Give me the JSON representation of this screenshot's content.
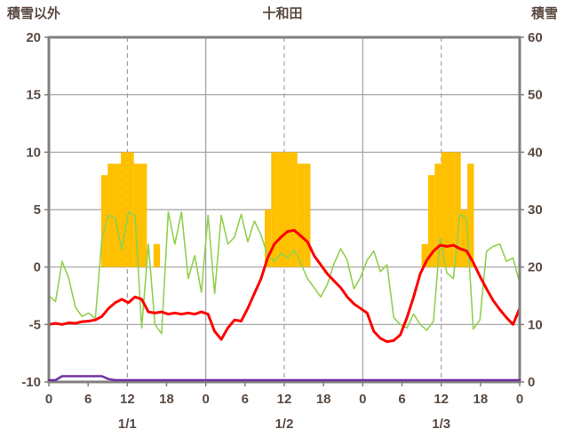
{
  "header": {
    "left_axis_title": "積雪以外",
    "title": "十和田",
    "right_axis_title": "積雪"
  },
  "colors": {
    "bar": "#FFC000",
    "green_line": "#92D050",
    "red_line": "#FF0000",
    "purple_line": "#7030A0",
    "axis_text": "#5a4a42",
    "grid": "#a0a0a0",
    "border": "#808080"
  },
  "chart_data": {
    "type": "bar",
    "title": "十和田",
    "x_unit": "hour",
    "x_range": [
      0,
      72
    ],
    "x_ticks": [
      0,
      6,
      12,
      18,
      24,
      30,
      36,
      42,
      48,
      54,
      60,
      66,
      72
    ],
    "x_tick_labels": [
      "0",
      "6",
      "12",
      "18",
      "0",
      "6",
      "12",
      "18",
      "0",
      "6",
      "12",
      "18",
      "0"
    ],
    "day_labels": [
      {
        "label": "1/1",
        "hour": 12
      },
      {
        "label": "1/2",
        "hour": 36
      },
      {
        "label": "1/3",
        "hour": 60
      }
    ],
    "left_axis": {
      "title": "積雪以外",
      "min": -10,
      "max": 20,
      "ticks": [
        20,
        15,
        10,
        5,
        0,
        -5,
        -10
      ]
    },
    "right_axis": {
      "title": "積雪",
      "min": 0,
      "max": 60,
      "ticks": [
        60,
        50,
        40,
        30,
        20,
        10,
        0
      ]
    },
    "grid": {
      "solid_vertical_hours": [
        24,
        48
      ],
      "dashed_vertical_hours": [
        12,
        36,
        60
      ]
    },
    "legend_position": "none",
    "series": [
      {
        "name": "orange-bars",
        "type": "bar",
        "axis": "left",
        "baseline": 0,
        "color": "#FFC000",
        "values": [
          0,
          0,
          0,
          0,
          0,
          0,
          0,
          0,
          8,
          9,
          9,
          10,
          10,
          9,
          9,
          0,
          2,
          0,
          0,
          0,
          0,
          0,
          0,
          0,
          0,
          0,
          0,
          0,
          0,
          0,
          0,
          0,
          0,
          5,
          10,
          10,
          10,
          10,
          9,
          9,
          0,
          0,
          0,
          0,
          0,
          0,
          0,
          0,
          0,
          0,
          0,
          0,
          0,
          0,
          0,
          0,
          0,
          2,
          8,
          9,
          10,
          10,
          10,
          5,
          9,
          0,
          0,
          0,
          0,
          0,
          0,
          0
        ]
      },
      {
        "name": "green-line",
        "type": "line",
        "axis": "left",
        "color": "#92D050",
        "width": 1.6,
        "values": [
          -2.5,
          -3,
          0.5,
          -1,
          -3.5,
          -4.3,
          -4,
          -4.5,
          2.5,
          4.5,
          4.3,
          1.5,
          4.8,
          4.5,
          -5.3,
          2,
          -5,
          -5.8,
          4.8,
          2,
          4.8,
          -1,
          1,
          -2.2,
          4.5,
          -2.3,
          4.5,
          2,
          2.6,
          4.6,
          2.2,
          4,
          2.8,
          1,
          0.5,
          1.2,
          0.8,
          1.5,
          0.3,
          -1,
          -1.8,
          -2.6,
          -1.5,
          0.3,
          1.6,
          0.6,
          -1.9,
          -0.9,
          0.6,
          1.4,
          -0.4,
          0.2,
          -4.4,
          -5,
          -5.3,
          -4.1,
          -5,
          -5.5,
          -4.7,
          2.5,
          -0.5,
          -1,
          4.6,
          4.2,
          -5.4,
          -4.6,
          1.4,
          1.8,
          2,
          0.5,
          0.8,
          -1.4
        ]
      },
      {
        "name": "red-line",
        "type": "line",
        "axis": "left",
        "color": "#FF0000",
        "width": 3,
        "values": [
          -5,
          -4.9,
          -5,
          -4.85,
          -4.9,
          -4.75,
          -4.7,
          -4.6,
          -4.3,
          -3.6,
          -3.1,
          -2.8,
          -3.1,
          -2.6,
          -2.8,
          -3.9,
          -4,
          -3.9,
          -4.1,
          -4,
          -4.1,
          -4,
          -4.1,
          -3.9,
          -4.1,
          -5.6,
          -6.3,
          -5.3,
          -4.6,
          -4.7,
          -3.6,
          -2.3,
          -1,
          0.8,
          2,
          2.6,
          3.1,
          3.2,
          2.7,
          2.2,
          1,
          0.2,
          -0.6,
          -1.2,
          -1.8,
          -2.6,
          -3.2,
          -3.6,
          -4,
          -5.6,
          -6.2,
          -6.5,
          -6.4,
          -5.9,
          -4.4,
          -2.6,
          -0.6,
          0.6,
          1.4,
          1.9,
          1.8,
          1.9,
          1.6,
          1.4,
          0.4,
          -0.8,
          -1.9,
          -2.9,
          -3.7,
          -4.4,
          -5,
          -3.6
        ]
      },
      {
        "name": "purple-line",
        "type": "line",
        "axis": "right",
        "color": "#7030A0",
        "width": 2.5,
        "values": [
          0,
          0,
          1,
          1,
          1,
          1,
          1,
          1,
          1,
          0.5,
          0,
          0,
          0,
          0,
          0,
          0,
          0,
          0,
          0,
          0,
          0,
          0,
          0,
          0,
          0,
          0,
          0,
          0,
          0,
          0,
          0,
          0,
          0,
          0,
          0,
          0,
          0,
          0,
          0,
          0,
          0,
          0,
          0,
          0,
          0,
          0,
          0,
          0,
          0,
          0,
          0,
          0,
          0,
          0,
          0,
          0,
          0,
          0,
          0,
          0,
          0,
          0,
          0,
          0,
          0,
          0,
          0,
          0,
          0,
          0,
          0,
          0
        ]
      }
    ]
  }
}
